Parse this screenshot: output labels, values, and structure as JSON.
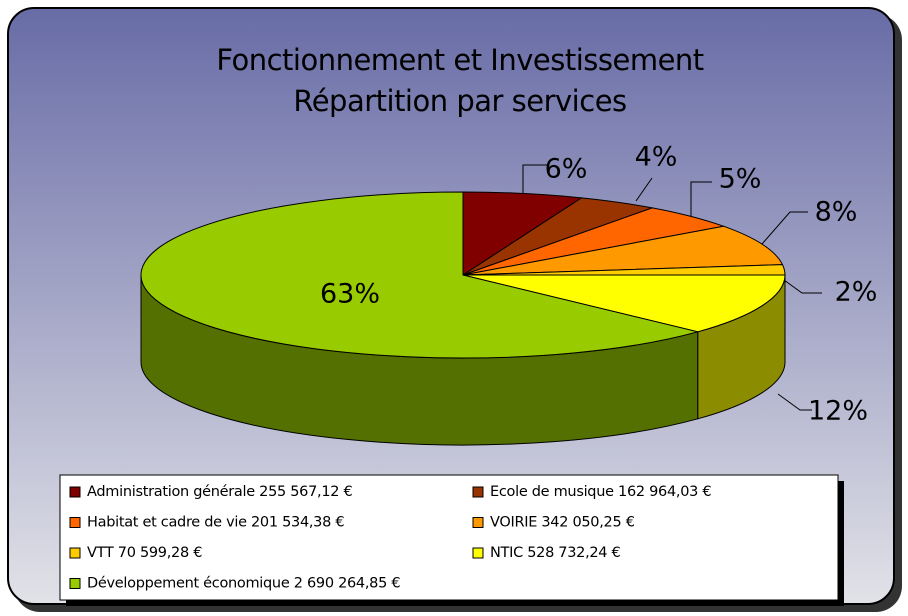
{
  "chart_data": {
    "type": "pie",
    "title": [
      "Fonctionnement et Investissement",
      "Répartition par services"
    ],
    "series": [
      {
        "name": "Administration générale 255 567,12 €",
        "color": "#800000",
        "values": [
          6
        ],
        "value_labels": [
          "6%"
        ]
      },
      {
        "name": "Ecole de musique 162 964,03 €",
        "color": "#993300",
        "values": [
          4
        ],
        "value_labels": [
          "4%"
        ]
      },
      {
        "name": "Habitat et cadre de vie 201 534,38 €",
        "color": "#ff6600",
        "values": [
          5
        ],
        "value_labels": [
          "5%"
        ]
      },
      {
        "name": "VOIRIE 342 050,25 €",
        "color": "#ff9900",
        "values": [
          8
        ],
        "value_labels": [
          "8%"
        ]
      },
      {
        "name": "VTT 70 599,28 €",
        "color": "#ffcc00",
        "values": [
          2
        ],
        "value_labels": [
          "2%"
        ]
      },
      {
        "name": "NTIC 528 732,24 €",
        "color": "#ffff00",
        "values": [
          12
        ],
        "value_labels": [
          "12%"
        ]
      },
      {
        "name": "Développement économique 2 690 264,85 €",
        "color": "#99cc00",
        "values": [
          63
        ],
        "value_labels": [
          "63%"
        ]
      }
    ],
    "legend": "bottom"
  }
}
